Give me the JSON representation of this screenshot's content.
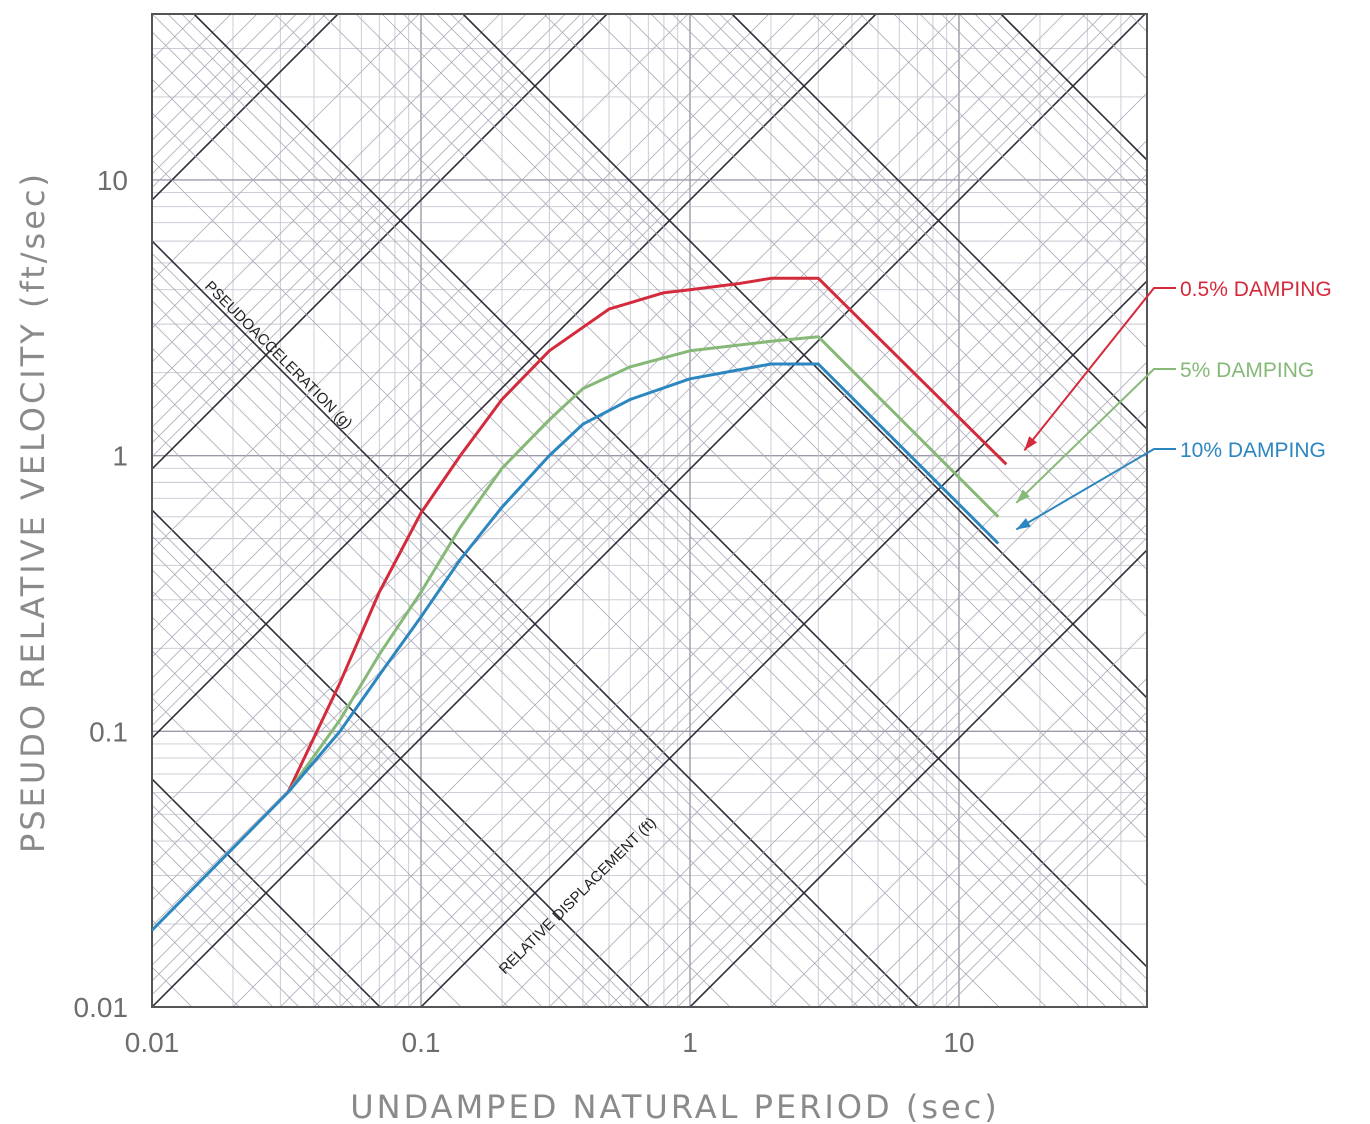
{
  "chart_data": {
    "type": "line",
    "title": "",
    "xlabel": "UNDAMPED NATURAL PERIOD (sec)",
    "ylabel": "PSEUDO RELATIVE VELOCITY (ft/sec)",
    "xscale": "log",
    "yscale": "log",
    "xlim": [
      0.01,
      50
    ],
    "ylim": [
      0.01,
      40
    ],
    "x_ticks": [
      {
        "value": 0.01,
        "label": "0.01"
      },
      {
        "value": 0.1,
        "label": "0.1"
      },
      {
        "value": 1,
        "label": "1"
      },
      {
        "value": 10,
        "label": "10"
      }
    ],
    "y_ticks": [
      {
        "value": 0.01,
        "label": "0.01"
      },
      {
        "value": 0.1,
        "label": "0.1"
      },
      {
        "value": 1,
        "label": "1"
      },
      {
        "value": 10,
        "label": "10"
      }
    ],
    "grid": "tripartite log grid (on)",
    "diagonal_axis_labels": {
      "acceleration": "PSEUDOACCELERATION (g)",
      "displacement": "RELATIVE DISPLACEMENT (ft)"
    },
    "series": [
      {
        "name": "0.5% DAMPING",
        "color": "#d42b3c",
        "x": [
          0.032,
          0.05,
          0.07,
          0.1,
          0.14,
          0.2,
          0.3,
          0.5,
          0.8,
          1,
          1.5,
          2,
          3,
          15
        ],
        "y": [
          0.06,
          0.15,
          0.32,
          0.62,
          1.0,
          1.6,
          2.4,
          3.4,
          3.9,
          4.0,
          4.2,
          4.4,
          4.4,
          0.93
        ]
      },
      {
        "name": "5% DAMPING",
        "color": "#86b877",
        "x": [
          0.032,
          0.05,
          0.07,
          0.1,
          0.14,
          0.2,
          0.3,
          0.4,
          0.6,
          1,
          2,
          3,
          14
        ],
        "y": [
          0.06,
          0.11,
          0.19,
          0.32,
          0.55,
          0.9,
          1.35,
          1.75,
          2.1,
          2.4,
          2.6,
          2.7,
          0.6
        ]
      },
      {
        "name": "10% DAMPING",
        "color": "#2c86bf",
        "x": [
          0.01,
          0.032,
          0.05,
          0.07,
          0.1,
          0.14,
          0.2,
          0.3,
          0.4,
          0.6,
          1,
          2,
          3,
          14
        ],
        "y": [
          0.019,
          0.06,
          0.1,
          0.16,
          0.26,
          0.42,
          0.65,
          1.0,
          1.3,
          1.6,
          1.9,
          2.15,
          2.15,
          0.48
        ]
      }
    ],
    "legend_position": "right, outside plot with arrows pointing to curve ends"
  }
}
